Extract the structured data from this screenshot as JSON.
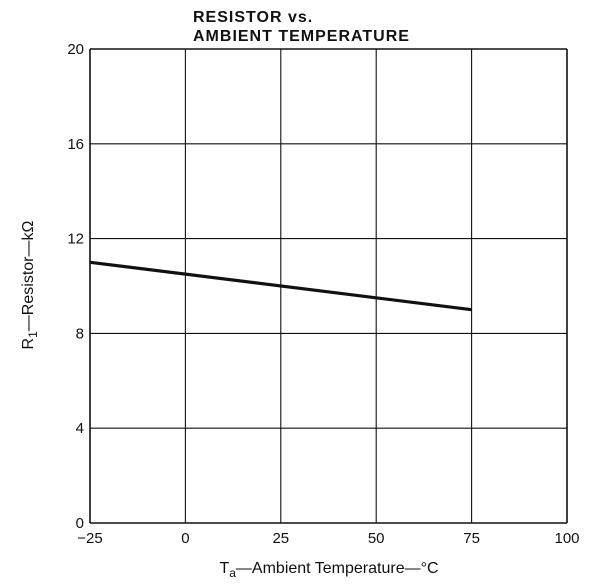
{
  "chart_data": {
    "type": "line",
    "title": "RESISTOR vs.",
    "subtitle": "AMBIENT TEMPERATURE",
    "xlabel": {
      "symbol": "T",
      "subscript": "a",
      "text": "—Ambient Temperature—°C"
    },
    "ylabel": {
      "symbol": "R",
      "subscript": "1",
      "text": "—Resistor—kΩ"
    },
    "xlim": [
      -25,
      100
    ],
    "ylim": [
      0,
      20
    ],
    "x_ticks": [
      -25,
      0,
      25,
      50,
      75,
      100
    ],
    "y_ticks": [
      0,
      4,
      8,
      12,
      16,
      20
    ],
    "x_tick_labels": [
      "−25",
      "0",
      "25",
      "50",
      "75",
      "100"
    ],
    "y_tick_labels": [
      "0",
      "4",
      "8",
      "12",
      "16",
      "20"
    ],
    "grid": true,
    "series": [
      {
        "x": [
          -25,
          75
        ],
        "y": [
          11.0,
          9.0
        ]
      }
    ]
  }
}
